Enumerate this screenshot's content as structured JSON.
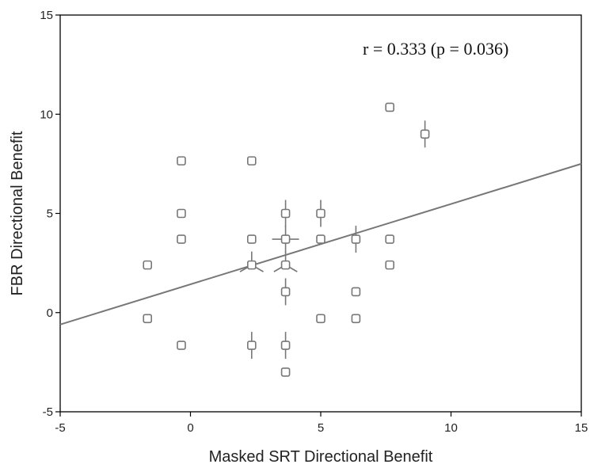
{
  "chart_data": {
    "type": "scatter",
    "title": "",
    "xlabel": "Masked SRT Directional Benefit",
    "ylabel": "FBR Directional Benefit",
    "xlim": [
      -5,
      15
    ],
    "ylim": [
      -5,
      15
    ],
    "xticks": [
      "-5",
      "0",
      "5",
      "10",
      "15"
    ],
    "yticks": [
      "-5",
      "0",
      "5",
      "10",
      "15"
    ],
    "grid": false,
    "annotation": "r = 0.333 (p = 0.036)",
    "marker": "open-square",
    "colors": {
      "points": "#777777",
      "fit_line": "#777777",
      "axes": "#000000"
    },
    "fit_line": {
      "x": [
        -5,
        15
      ],
      "y": [
        -0.6,
        7.5
      ]
    },
    "points": [
      {
        "x": -1.65,
        "y": 2.4
      },
      {
        "x": -1.65,
        "y": -0.3
      },
      {
        "x": -0.35,
        "y": 7.65
      },
      {
        "x": -0.35,
        "y": 5.0
      },
      {
        "x": -0.35,
        "y": 3.7
      },
      {
        "x": -0.35,
        "y": -1.65
      },
      {
        "x": 2.35,
        "y": 7.65
      },
      {
        "x": 2.35,
        "y": 3.7
      },
      {
        "x": 2.35,
        "y": 2.4,
        "sunflower": 3
      },
      {
        "x": 2.35,
        "y": -1.65,
        "sunflower": 2
      },
      {
        "x": 3.65,
        "y": 5.0,
        "sunflower": 2
      },
      {
        "x": 3.65,
        "y": 3.7,
        "sunflower": 4
      },
      {
        "x": 3.65,
        "y": 2.4,
        "sunflower": 3
      },
      {
        "x": 3.65,
        "y": 1.05,
        "sunflower": 2
      },
      {
        "x": 3.65,
        "y": -1.65,
        "sunflower": 2
      },
      {
        "x": 3.65,
        "y": -3.0
      },
      {
        "x": 5.0,
        "y": 5.0,
        "sunflower": 2
      },
      {
        "x": 5.0,
        "y": 3.7
      },
      {
        "x": 5.0,
        "y": -0.3
      },
      {
        "x": 6.35,
        "y": 3.7,
        "sunflower": 2
      },
      {
        "x": 6.35,
        "y": 1.05
      },
      {
        "x": 6.35,
        "y": -0.3
      },
      {
        "x": 7.65,
        "y": 10.35
      },
      {
        "x": 7.65,
        "y": 3.7
      },
      {
        "x": 7.65,
        "y": 2.4
      },
      {
        "x": 9.0,
        "y": 9.0,
        "sunflower": 2
      }
    ]
  }
}
